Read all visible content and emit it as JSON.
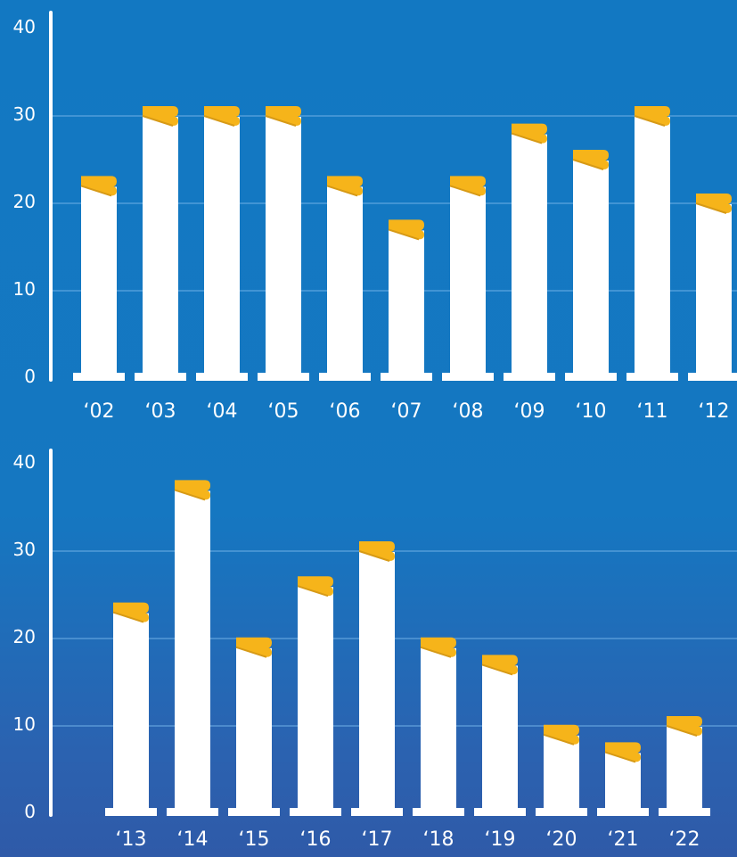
{
  "colors": {
    "background": "#1577c1",
    "bar": "#ffffff",
    "bar_cap": "#f6b41a",
    "bar_cap_shade": "#d79a16",
    "axis": "#ffffff",
    "gridline": "#6fb0e6"
  },
  "chart_data": [
    {
      "type": "bar",
      "categories": [
        "‘02",
        "‘03",
        "‘04",
        "‘05",
        "‘06",
        "‘07",
        "‘08",
        "‘09",
        "‘10",
        "‘11",
        "‘12"
      ],
      "values": [
        22,
        30,
        30,
        30,
        22,
        17,
        22,
        28,
        25,
        30,
        20
      ],
      "ylim": [
        0,
        40
      ],
      "yticks": [
        0,
        10,
        20,
        30,
        40
      ],
      "ytick_labels": [
        "0",
        "10",
        "20",
        "30",
        "40"
      ],
      "grid": true
    },
    {
      "type": "bar",
      "categories": [
        "‘13",
        "‘14",
        "‘15",
        "‘16",
        "‘17",
        "‘18",
        "‘19",
        "‘20",
        "‘21",
        "‘22"
      ],
      "values": [
        23,
        37,
        19,
        26,
        30,
        19,
        17,
        9,
        7,
        10
      ],
      "ylim": [
        0,
        40
      ],
      "yticks": [
        0,
        10,
        20,
        30,
        40
      ],
      "ytick_labels": [
        "0",
        "10",
        "20",
        "30",
        "40"
      ],
      "grid": true
    }
  ]
}
